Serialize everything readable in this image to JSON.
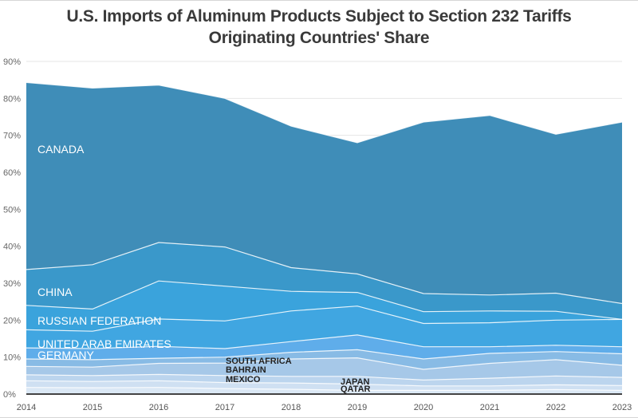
{
  "chart_data": {
    "type": "area",
    "stacked": true,
    "title": "U.S. Imports of Aluminum Products Subject to Section 232 Tariffs",
    "subtitle": "Originating Countries' Share",
    "xlabel": "",
    "ylabel": "",
    "x": [
      "2014",
      "2015",
      "2016",
      "2017",
      "2018",
      "2019",
      "2020",
      "2021",
      "2022",
      "2023"
    ],
    "ylim": [
      0,
      90
    ],
    "yticks": [
      "0%",
      "10%",
      "20%",
      "30%",
      "40%",
      "50%",
      "60%",
      "70%",
      "80%",
      "90%"
    ],
    "grid": true,
    "legend": "inline-labels",
    "series": [
      {
        "name": "QATAR",
        "color": "#dbe8f5",
        "label_color": "#222222",
        "values": [
          1.8,
          1.7,
          1.8,
          1.5,
          1.3,
          1.0,
          1.0,
          1.0,
          1.2,
          1.0
        ]
      },
      {
        "name": "JAPAN",
        "color": "#cfe0f2",
        "label_color": "#222222",
        "values": [
          1.8,
          1.7,
          1.8,
          1.6,
          1.7,
          1.7,
          1.2,
          1.2,
          1.3,
          1.3
        ]
      },
      {
        "name": "MEXICO",
        "color": "#bcd5ee",
        "label_color": "#222222",
        "values": [
          1.6,
          1.6,
          1.7,
          1.9,
          1.8,
          2.1,
          1.6,
          2.1,
          2.4,
          2.2
        ]
      },
      {
        "name": "BAHRAIN",
        "color": "#a6c8e8",
        "label_color": "#222222",
        "values": [
          2.3,
          2.3,
          3.0,
          3.4,
          4.7,
          5.0,
          2.9,
          4.0,
          4.4,
          3.3
        ]
      },
      {
        "name": "SOUTH AFRICA",
        "color": "#88bbe5",
        "label_color": "#222222",
        "values": [
          2.0,
          2.0,
          1.4,
          1.6,
          1.8,
          2.2,
          2.8,
          2.7,
          2.2,
          3.1
        ]
      },
      {
        "name": "GERMANY",
        "color": "#5fadea",
        "label_color": "#ffffff",
        "values": [
          3.0,
          3.0,
          3.2,
          2.3,
          2.9,
          4.0,
          3.3,
          1.8,
          1.7,
          1.9
        ]
      },
      {
        "name": "UNITED ARAB EMIRATES",
        "color": "#40a6e1",
        "label_color": "#ffffff",
        "values": [
          4.9,
          4.7,
          7.4,
          7.5,
          8.3,
          7.8,
          6.3,
          6.5,
          6.8,
          7.4
        ]
      },
      {
        "name": "RUSSIAN FEDERATION",
        "color": "#3aa3dc",
        "label_color": "#ffffff",
        "values": [
          6.6,
          6.0,
          10.3,
          9.4,
          5.3,
          3.7,
          3.2,
          3.2,
          2.4,
          0.0
        ]
      },
      {
        "name": "CHINA",
        "color": "#3a98ca",
        "label_color": "#ffffff",
        "values": [
          9.7,
          12.0,
          10.4,
          10.6,
          6.4,
          5.0,
          4.9,
          4.3,
          4.9,
          4.3
        ]
      },
      {
        "name": "CANADA",
        "color": "#3f8db8",
        "label_color": "#ffffff",
        "values": [
          50.6,
          47.8,
          42.6,
          40.2,
          38.3,
          35.5,
          46.4,
          48.6,
          43.0,
          49.1
        ]
      }
    ]
  }
}
